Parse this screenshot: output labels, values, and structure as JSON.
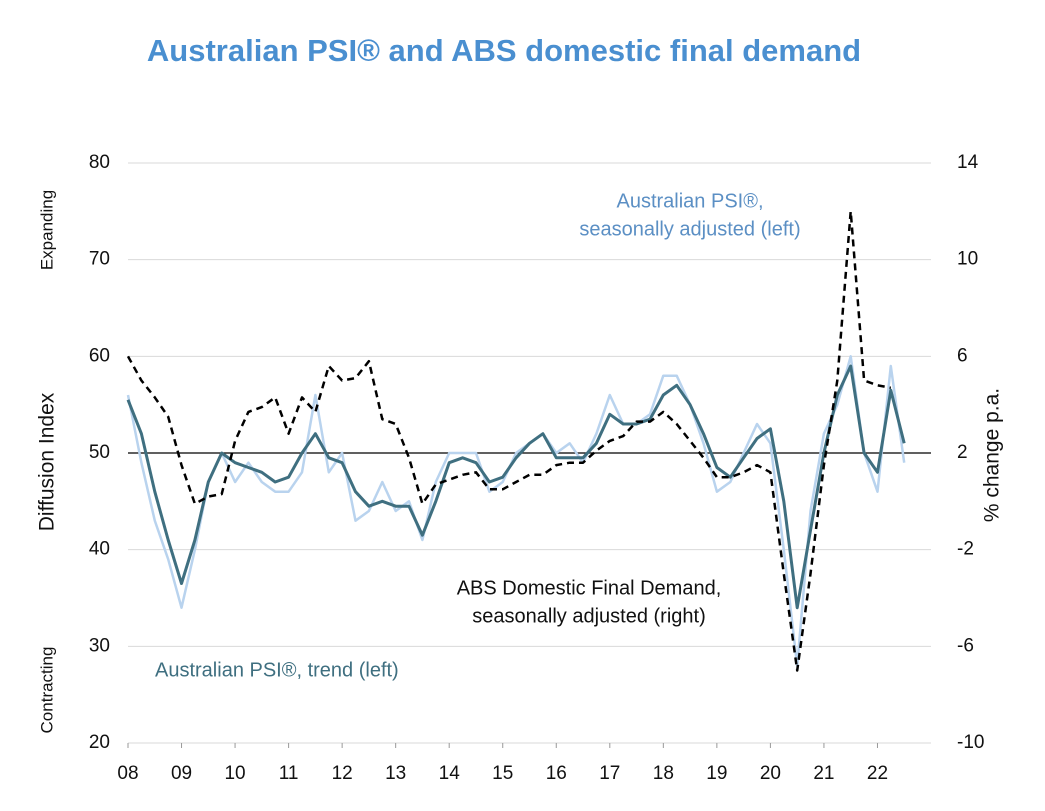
{
  "chart_data": {
    "type": "line",
    "title": "Australian PSI® and ABS domestic final demand",
    "ylabel": "Diffusion Index",
    "y2label": "% change p.a.",
    "ylabel_top": "Expanding",
    "ylabel_bottom": "Contracting",
    "xlim": [
      2008,
      2023
    ],
    "xticks": [
      {
        "value": 2008,
        "label": "08"
      },
      {
        "value": 2009,
        "label": "09"
      },
      {
        "value": 2010,
        "label": "10"
      },
      {
        "value": 2011,
        "label": "11"
      },
      {
        "value": 2012,
        "label": "12"
      },
      {
        "value": 2013,
        "label": "13"
      },
      {
        "value": 2014,
        "label": "14"
      },
      {
        "value": 2015,
        "label": "15"
      },
      {
        "value": 2016,
        "label": "16"
      },
      {
        "value": 2017,
        "label": "17"
      },
      {
        "value": 2018,
        "label": "18"
      },
      {
        "value": 2019,
        "label": "19"
      },
      {
        "value": 2020,
        "label": "20"
      },
      {
        "value": 2021,
        "label": "21"
      },
      {
        "value": 2022,
        "label": "22"
      }
    ],
    "ylim": [
      20,
      80
    ],
    "yticks": [
      20,
      30,
      40,
      50,
      60,
      70,
      80
    ],
    "y2lim": [
      -10,
      14
    ],
    "y2ticks": [
      -10,
      -6,
      -2,
      2,
      6,
      10,
      14
    ],
    "grid": true,
    "reference_line": 50,
    "x": [
      2008,
      2008.25,
      2008.5,
      2008.75,
      2009,
      2009.25,
      2009.5,
      2009.75,
      2010,
      2010.25,
      2010.5,
      2010.75,
      2011,
      2011.25,
      2011.5,
      2011.75,
      2012,
      2012.25,
      2012.5,
      2012.75,
      2013,
      2013.25,
      2013.5,
      2013.75,
      2014,
      2014.25,
      2014.5,
      2014.75,
      2015,
      2015.25,
      2015.5,
      2015.75,
      2016,
      2016.25,
      2016.5,
      2016.75,
      2017,
      2017.25,
      2017.5,
      2017.75,
      2018,
      2018.25,
      2018.5,
      2018.75,
      2019,
      2019.25,
      2019.5,
      2019.75,
      2020,
      2020.25,
      2020.5,
      2020.75,
      2021,
      2021.25,
      2021.5,
      2021.75,
      2022,
      2022.25,
      2022.5
    ],
    "series": [
      {
        "name": "Australian PSI®, seasonally adjusted (left)",
        "color": "#b9d3ee",
        "width": 2.5,
        "dash": false,
        "values": [
          56,
          49,
          43,
          39,
          34,
          40,
          47,
          50,
          47,
          49,
          47,
          46,
          46,
          48,
          56,
          48,
          50,
          43,
          44,
          47,
          44,
          45,
          41,
          47,
          50,
          50,
          50,
          46,
          47,
          50,
          51,
          52,
          50,
          51,
          49,
          52,
          56,
          53,
          53,
          54,
          58,
          58,
          55,
          51,
          46,
          47,
          50,
          53,
          51,
          40,
          28,
          44,
          52,
          55,
          60,
          50,
          46,
          59,
          49
        ]
      },
      {
        "name": "Australian PSI®, trend (left)",
        "color": "#3f6f80",
        "width": 3,
        "dash": false,
        "values": [
          55.5,
          52,
          46,
          41,
          36.5,
          41,
          47,
          50,
          49,
          48.5,
          48,
          47,
          47.5,
          50,
          52,
          49.5,
          49,
          46,
          44.5,
          45,
          44.5,
          44.5,
          41.5,
          45,
          49,
          49.5,
          49,
          47,
          47.5,
          49.5,
          51,
          52,
          49.5,
          49.5,
          49.5,
          51,
          54,
          53,
          53,
          53.5,
          56,
          57,
          55,
          52,
          48.5,
          47.5,
          49.5,
          51.5,
          52.5,
          45,
          34,
          42,
          50,
          56,
          59,
          50,
          48,
          56.5,
          51
        ]
      },
      {
        "name": "ABS Domestic Final Demand, seasonally adjusted (right)",
        "color": "#000000",
        "width": 2.5,
        "dash": true,
        "axis": "y2",
        "values": [
          6,
          5,
          4.3,
          3.5,
          1.5,
          -0.1,
          0.2,
          0.3,
          2.5,
          3.7,
          3.9,
          4.3,
          2.8,
          4.3,
          3.7,
          5.6,
          5,
          5.1,
          5.8,
          3.4,
          3.2,
          1.8,
          -0.1,
          0.7,
          0.9,
          1.1,
          1.2,
          0.5,
          0.5,
          0.8,
          1.1,
          1.1,
          1.5,
          1.6,
          1.6,
          2.1,
          2.5,
          2.7,
          3.3,
          3.3,
          3.7,
          3.2,
          2.5,
          1.8,
          1,
          1,
          1.2,
          1.5,
          1.2,
          -3,
          -7,
          -3,
          1.5,
          5,
          12,
          5,
          4.8,
          4.7,
          null
        ]
      }
    ],
    "annotations": [
      {
        "lines": [
          "Australian PSI®,",
          "seasonally adjusted (left)"
        ],
        "color": "#5b8fc4"
      },
      {
        "lines": [
          "ABS Domestic Final Demand,",
          "seasonally adjusted (right)"
        ],
        "color": "#111111"
      },
      {
        "lines": [
          "Australian PSI®, trend (left)"
        ],
        "color": "#3f6f80"
      }
    ]
  }
}
